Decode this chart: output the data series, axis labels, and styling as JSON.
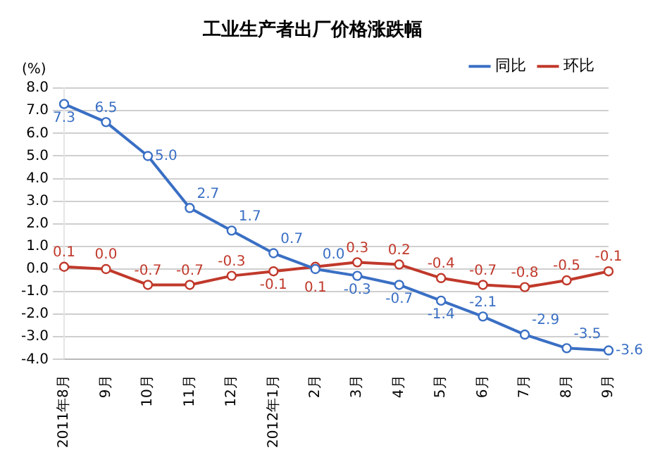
{
  "chart_data": {
    "type": "line",
    "title": "工业生产者出厂价格涨跌幅",
    "ylabel": "(%)",
    "categories": [
      "2011年8月",
      "9月",
      "10月",
      "11月",
      "12月",
      "2012年1月",
      "2月",
      "3月",
      "4月",
      "5月",
      "6月",
      "7月",
      "8月",
      "9月"
    ],
    "series": [
      {
        "name": "同比",
        "color": "#3a6fc4",
        "values": [
          7.3,
          6.5,
          5.0,
          2.7,
          1.7,
          0.7,
          0.0,
          -0.3,
          -0.7,
          -1.4,
          -2.1,
          -2.9,
          -3.5,
          -3.6
        ],
        "value_labels": [
          "7.3",
          "6.5",
          "5.0",
          "2.7",
          "1.7",
          "0.7",
          "0.0",
          "-0.3",
          "-0.7",
          "-1.4",
          "-2.1",
          "-2.9",
          "-3.5",
          "-3.6"
        ]
      },
      {
        "name": "环比",
        "color": "#c0392b",
        "values": [
          0.1,
          0.0,
          -0.7,
          -0.7,
          -0.3,
          -0.1,
          0.1,
          0.3,
          0.2,
          -0.4,
          -0.7,
          -0.8,
          -0.5,
          -0.1
        ],
        "value_labels": [
          "0.1",
          "0.0",
          "-0.7",
          "-0.7",
          "-0.3",
          "-0.1",
          "0.1",
          "0.3",
          "0.2",
          "-0.4",
          "-0.7",
          "-0.8",
          "-0.5",
          "-0.1"
        ]
      }
    ],
    "ylim": [
      -4,
      8
    ],
    "yticks": [
      {
        "value": -4,
        "label": "-4.0"
      },
      {
        "value": -3,
        "label": "-3.0"
      },
      {
        "value": -2,
        "label": "-2.0"
      },
      {
        "value": -1,
        "label": "-1.0"
      },
      {
        "value": 0,
        "label": "0.0"
      },
      {
        "value": 1,
        "label": "1.0"
      },
      {
        "value": 2,
        "label": "2.0"
      },
      {
        "value": 3,
        "label": "3.0"
      },
      {
        "value": 4,
        "label": "4.0"
      },
      {
        "value": 5,
        "label": "5.0"
      },
      {
        "value": 6,
        "label": "6.0"
      },
      {
        "value": 7,
        "label": "7.0"
      },
      {
        "value": 8,
        "label": "8.0"
      }
    ],
    "grid": "y",
    "legend": "top right",
    "marker": "circle",
    "line_style": "solid"
  }
}
